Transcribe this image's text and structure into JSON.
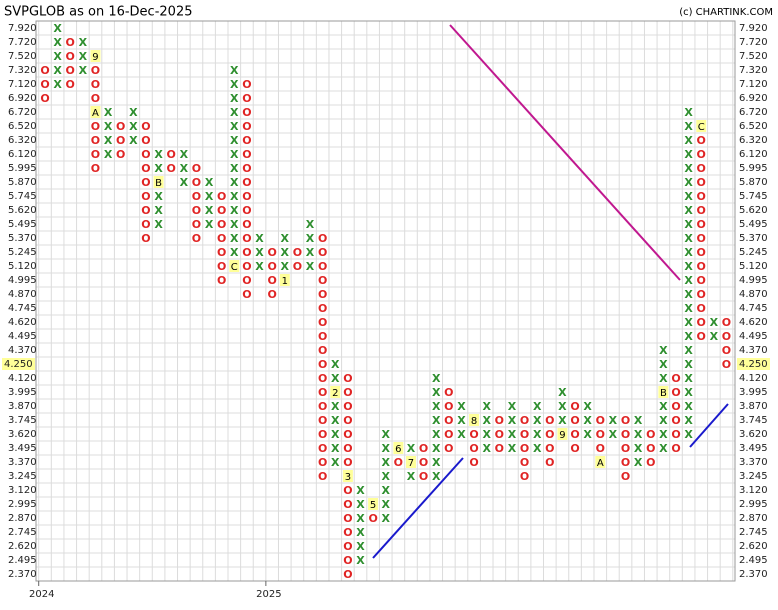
{
  "chart_data": {
    "type": "point-figure",
    "title": "SVPGLOB as on 16-Dec-2025",
    "credit": "(c) CHARTINK.COM",
    "x_color": "#2f8f2f",
    "o_color": "#e02424",
    "marker_color": "#ffff99",
    "highlight": {
      "value": 4.25,
      "label": "4.250"
    },
    "levels": [
      {
        "value": 7.92,
        "label": "7.920"
      },
      {
        "value": 7.72,
        "label": "7.720"
      },
      {
        "value": 7.52,
        "label": "7.520"
      },
      {
        "value": 7.32,
        "label": "7.320"
      },
      {
        "value": 7.12,
        "label": "7.120"
      },
      {
        "value": 6.92,
        "label": "6.920"
      },
      {
        "value": 6.72,
        "label": "6.720"
      },
      {
        "value": 6.52,
        "label": "6.520"
      },
      {
        "value": 6.32,
        "label": "6.320"
      },
      {
        "value": 6.12,
        "label": "6.120"
      },
      5.995,
      {
        "value": 5.87,
        "label": "5.870"
      },
      5.745,
      {
        "value": 5.62,
        "label": "5.620"
      },
      5.495,
      {
        "value": 5.37,
        "label": "5.370"
      },
      5.245,
      {
        "value": 5.12,
        "label": "5.120"
      },
      4.995,
      {
        "value": 4.87,
        "label": "4.870"
      },
      4.745,
      {
        "value": 4.62,
        "label": "4.620"
      },
      4.495,
      {
        "value": 4.37,
        "label": "4.370"
      },
      {
        "value": 4.25,
        "label": "4.250"
      },
      {
        "value": 4.12,
        "label": "4.120"
      },
      3.995,
      {
        "value": 3.87,
        "label": "3.870"
      },
      3.745,
      {
        "value": 3.62,
        "label": "3.620"
      },
      3.495,
      {
        "value": 3.37,
        "label": "3.370"
      },
      3.245,
      {
        "value": 3.12,
        "label": "3.120"
      },
      2.995,
      {
        "value": 2.87,
        "label": "2.870"
      },
      2.745,
      {
        "value": 2.62,
        "label": "2.620"
      },
      2.495,
      {
        "value": 2.37,
        "label": "2.370"
      }
    ],
    "columns": [
      {
        "type": "O",
        "high": 7.32,
        "low": 6.92,
        "year": "2024"
      },
      {
        "type": "X",
        "high": 7.92,
        "low": 7.12
      },
      {
        "type": "O",
        "high": 7.72,
        "low": 7.12
      },
      {
        "type": "X",
        "high": 7.72,
        "low": 7.32
      },
      {
        "type": "O",
        "high": 7.52,
        "low": 5.995,
        "markers": [
          {
            "value": 7.52,
            "label": "9"
          },
          {
            "value": 6.72,
            "label": "A"
          }
        ]
      },
      {
        "type": "X",
        "high": 6.72,
        "low": 6.12
      },
      {
        "type": "O",
        "high": 6.52,
        "low": 6.12
      },
      {
        "type": "X",
        "high": 6.72,
        "low": 6.32
      },
      {
        "type": "O",
        "high": 6.52,
        "low": 5.37
      },
      {
        "type": "X",
        "high": 6.12,
        "low": 5.495,
        "markers": [
          {
            "value": 5.87,
            "label": "B"
          }
        ]
      },
      {
        "type": "O",
        "high": 6.12,
        "low": 5.995
      },
      {
        "type": "X",
        "high": 6.12,
        "low": 5.87
      },
      {
        "type": "O",
        "high": 5.995,
        "low": 5.37
      },
      {
        "type": "X",
        "high": 5.87,
        "low": 5.495
      },
      {
        "type": "O",
        "high": 5.745,
        "low": 4.995
      },
      {
        "type": "X",
        "high": 7.32,
        "low": 5.12,
        "markers": [
          {
            "value": 5.12,
            "label": "C"
          }
        ]
      },
      {
        "type": "O",
        "high": 7.12,
        "low": 4.87
      },
      {
        "type": "X",
        "high": 5.37,
        "low": 5.12
      },
      {
        "type": "O",
        "high": 5.245,
        "low": 4.87,
        "year": "2025"
      },
      {
        "type": "X",
        "high": 5.37,
        "low": 4.995,
        "markers": [
          {
            "value": 4.995,
            "label": "1"
          }
        ]
      },
      {
        "type": "O",
        "high": 5.245,
        "low": 5.12
      },
      {
        "type": "X",
        "high": 5.495,
        "low": 5.12
      },
      {
        "type": "O",
        "high": 5.37,
        "low": 3.245
      },
      {
        "type": "X",
        "high": 4.25,
        "low": 3.37,
        "markers": [
          {
            "value": 3.995,
            "label": "2"
          }
        ]
      },
      {
        "type": "O",
        "high": 4.12,
        "low": 2.37,
        "markers": [
          {
            "value": 3.245,
            "label": "3"
          }
        ]
      },
      {
        "type": "X",
        "high": 3.12,
        "low": 2.495
      },
      {
        "type": "O",
        "high": 2.995,
        "low": 2.87,
        "markers": [
          {
            "value": 2.995,
            "label": "5"
          }
        ]
      },
      {
        "type": "X",
        "high": 3.62,
        "low": 2.87
      },
      {
        "type": "O",
        "high": 3.495,
        "low": 3.37,
        "markers": [
          {
            "value": 3.495,
            "label": "6"
          }
        ]
      },
      {
        "type": "X",
        "high": 3.495,
        "low": 3.245,
        "markers": [
          {
            "value": 3.37,
            "label": "7"
          }
        ]
      },
      {
        "type": "O",
        "high": 3.495,
        "low": 3.245
      },
      {
        "type": "X",
        "high": 4.12,
        "low": 3.245
      },
      {
        "type": "O",
        "high": 3.995,
        "low": 3.495
      },
      {
        "type": "X",
        "high": 3.87,
        "low": 3.62
      },
      {
        "type": "O",
        "high": 3.745,
        "low": 3.37,
        "markers": [
          {
            "value": 3.745,
            "label": "8"
          }
        ]
      },
      {
        "type": "X",
        "high": 3.87,
        "low": 3.495
      },
      {
        "type": "O",
        "high": 3.745,
        "low": 3.495
      },
      {
        "type": "X",
        "high": 3.87,
        "low": 3.495
      },
      {
        "type": "O",
        "high": 3.745,
        "low": 3.245
      },
      {
        "type": "X",
        "high": 3.87,
        "low": 3.495
      },
      {
        "type": "O",
        "high": 3.745,
        "low": 3.37
      },
      {
        "type": "X",
        "high": 3.995,
        "low": 3.62,
        "markers": [
          {
            "value": 3.62,
            "label": "9"
          }
        ]
      },
      {
        "type": "O",
        "high": 3.87,
        "low": 3.495
      },
      {
        "type": "X",
        "high": 3.87,
        "low": 3.62
      },
      {
        "type": "O",
        "high": 3.745,
        "low": 3.37,
        "markers": [
          {
            "value": 3.37,
            "label": "A"
          }
        ]
      },
      {
        "type": "X",
        "high": 3.745,
        "low": 3.62
      },
      {
        "type": "O",
        "high": 3.745,
        "low": 3.245
      },
      {
        "type": "X",
        "high": 3.745,
        "low": 3.37
      },
      {
        "type": "O",
        "high": 3.62,
        "low": 3.37
      },
      {
        "type": "X",
        "high": 4.37,
        "low": 3.495,
        "markers": [
          {
            "value": 3.995,
            "label": "B"
          }
        ]
      },
      {
        "type": "O",
        "high": 4.12,
        "low": 3.495
      },
      {
        "type": "X",
        "high": 6.72,
        "low": 3.62
      },
      {
        "type": "O",
        "high": 6.52,
        "low": 4.495,
        "markers": [
          {
            "value": 6.52,
            "label": "C"
          }
        ]
      },
      {
        "type": "X",
        "high": 4.62,
        "low": 4.495
      },
      {
        "type": "O",
        "high": 4.62,
        "low": 4.25
      }
    ]
  }
}
